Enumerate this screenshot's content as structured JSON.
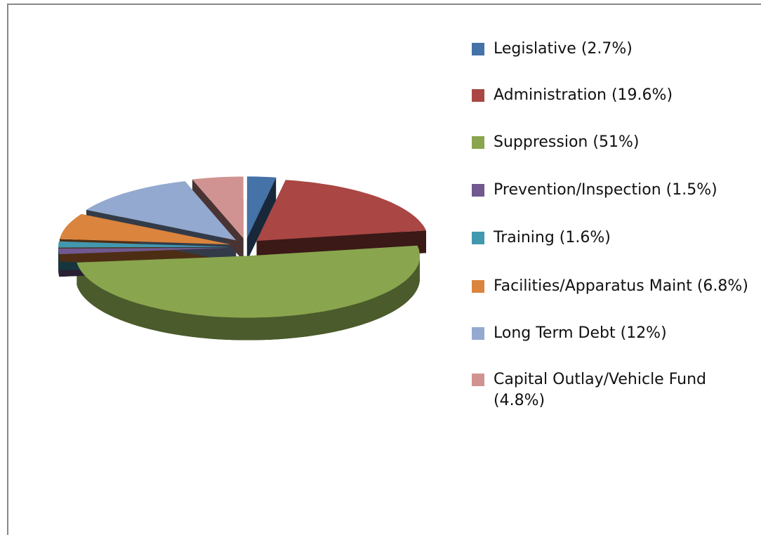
{
  "chart_data": {
    "type": "pie3d",
    "categories": [
      "Legislative (2.7%)",
      "Administration (19.6%)",
      "Suppression (51%)",
      "Prevention/Inspection (1.5%)",
      "Training (1.6%)",
      "Facilities/Apparatus Maint (6.8%)",
      "Long Term Debt (12%)",
      "Capital Outlay/Vehicle Fund (4.8%)"
    ],
    "values": [
      2.7,
      19.6,
      51,
      1.5,
      1.6,
      6.8,
      12,
      4.8
    ],
    "colors": [
      "#4572a7",
      "#aa4643",
      "#89a54e",
      "#71588f",
      "#4198af",
      "#db843d",
      "#93a9cf",
      "#d19392"
    ],
    "legend": "right"
  }
}
